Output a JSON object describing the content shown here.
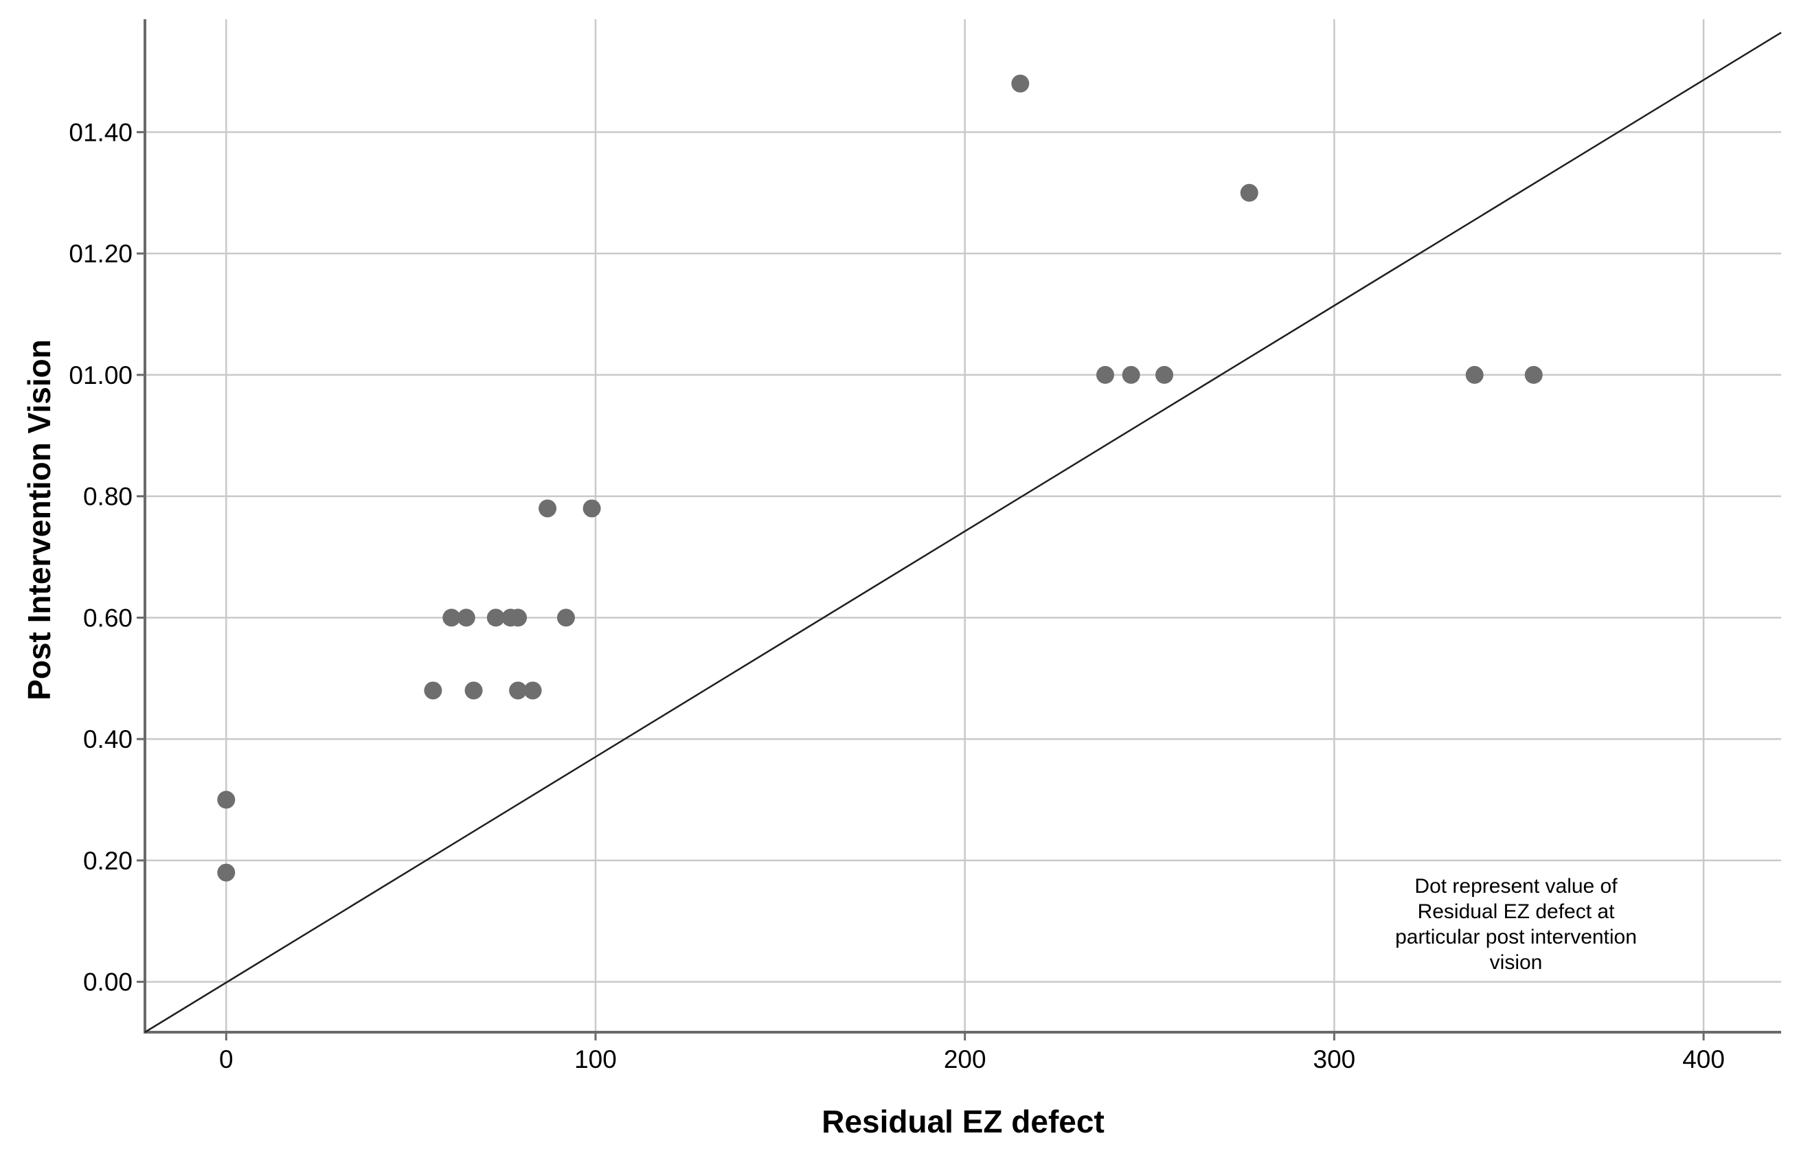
{
  "colors": {
    "background": "#ffffff",
    "grid": "#c9c9c9",
    "axis": "#6a6a6a",
    "tick": "#6a6a6a",
    "point": "#6e6e6e",
    "reference_line": "#1f1f1f",
    "text": "#000000"
  },
  "chart_data": {
    "type": "scatter",
    "title": "",
    "xlabel": "Residual EZ defect",
    "ylabel": "Post Intervention Vision",
    "xlim": [
      -22,
      421
    ],
    "ylim": [
      -0.083,
      1.586
    ],
    "grid": true,
    "legend": false,
    "xticks": {
      "values": [
        0,
        100,
        200,
        300,
        400
      ],
      "labels": [
        "0",
        "100",
        "200",
        "300",
        "400"
      ]
    },
    "yticks": {
      "values": [
        0.0,
        0.2,
        0.4,
        0.6,
        0.8,
        1.0,
        1.2,
        1.4
      ],
      "labels": [
        "0.00",
        "0.20",
        "0.40",
        "0.60",
        "0.80",
        "01.00",
        "01.20",
        "01.40"
      ]
    },
    "points": [
      [
        0,
        0.3
      ],
      [
        0,
        0.18
      ],
      [
        56,
        0.48
      ],
      [
        67,
        0.48
      ],
      [
        79,
        0.48
      ],
      [
        83,
        0.48
      ],
      [
        61,
        0.6
      ],
      [
        65,
        0.6
      ],
      [
        73,
        0.6
      ],
      [
        77,
        0.6
      ],
      [
        79,
        0.6
      ],
      [
        92,
        0.6
      ],
      [
        87,
        0.78
      ],
      [
        99,
        0.78
      ],
      [
        238,
        1.0
      ],
      [
        245,
        1.0
      ],
      [
        254,
        1.0
      ],
      [
        338,
        1.0
      ],
      [
        354,
        1.0
      ],
      [
        215,
        1.48
      ],
      [
        277,
        1.3
      ]
    ],
    "point_radius_px": 13,
    "reference_line": {
      "from": [
        -22,
        -0.083
      ],
      "to": [
        421,
        1.564
      ]
    },
    "annotation": {
      "lines": [
        "Dot represent value of",
        "Residual EZ defect at",
        "particular post intervention",
        "vision"
      ]
    }
  }
}
